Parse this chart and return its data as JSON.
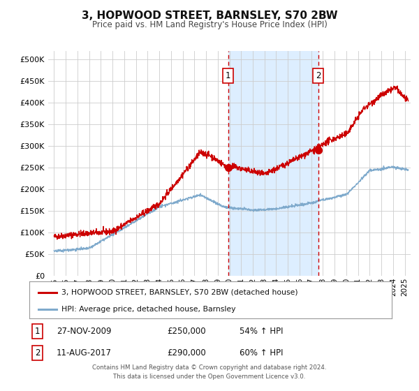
{
  "title": "3, HOPWOOD STREET, BARNSLEY, S70 2BW",
  "subtitle": "Price paid vs. HM Land Registry's House Price Index (HPI)",
  "xlim": [
    1994.5,
    2025.5
  ],
  "ylim": [
    0,
    520000
  ],
  "yticks": [
    0,
    50000,
    100000,
    150000,
    200000,
    250000,
    300000,
    350000,
    400000,
    450000,
    500000
  ],
  "ytick_labels": [
    "£0",
    "£50K",
    "£100K",
    "£150K",
    "£200K",
    "£250K",
    "£300K",
    "£350K",
    "£400K",
    "£450K",
    "£500K"
  ],
  "xtick_years": [
    1995,
    1996,
    1997,
    1998,
    1999,
    2000,
    2001,
    2002,
    2003,
    2004,
    2005,
    2006,
    2007,
    2008,
    2009,
    2010,
    2011,
    2012,
    2013,
    2014,
    2015,
    2016,
    2017,
    2018,
    2019,
    2020,
    2021,
    2022,
    2023,
    2024,
    2025
  ],
  "event1_x": 2009.9,
  "event1_y": 250000,
  "event1_label": "1",
  "event1_date": "27-NOV-2009",
  "event1_price": "£250,000",
  "event1_hpi": "54% ↑ HPI",
  "event2_x": 2017.6,
  "event2_y": 290000,
  "event2_label": "2",
  "event2_date": "11-AUG-2017",
  "event2_price": "£290,000",
  "event2_hpi": "60% ↑ HPI",
  "shade_x1": 2009.9,
  "shade_x2": 2017.6,
  "red_line_color": "#cc0000",
  "blue_line_color": "#7faacc",
  "shade_color": "#ddeeff",
  "grid_color": "#cccccc",
  "bg_color": "#ffffff",
  "legend1": "3, HOPWOOD STREET, BARNSLEY, S70 2BW (detached house)",
  "legend2": "HPI: Average price, detached house, Barnsley",
  "footer": "Contains HM Land Registry data © Crown copyright and database right 2024.\nThis data is licensed under the Open Government Licence v3.0."
}
